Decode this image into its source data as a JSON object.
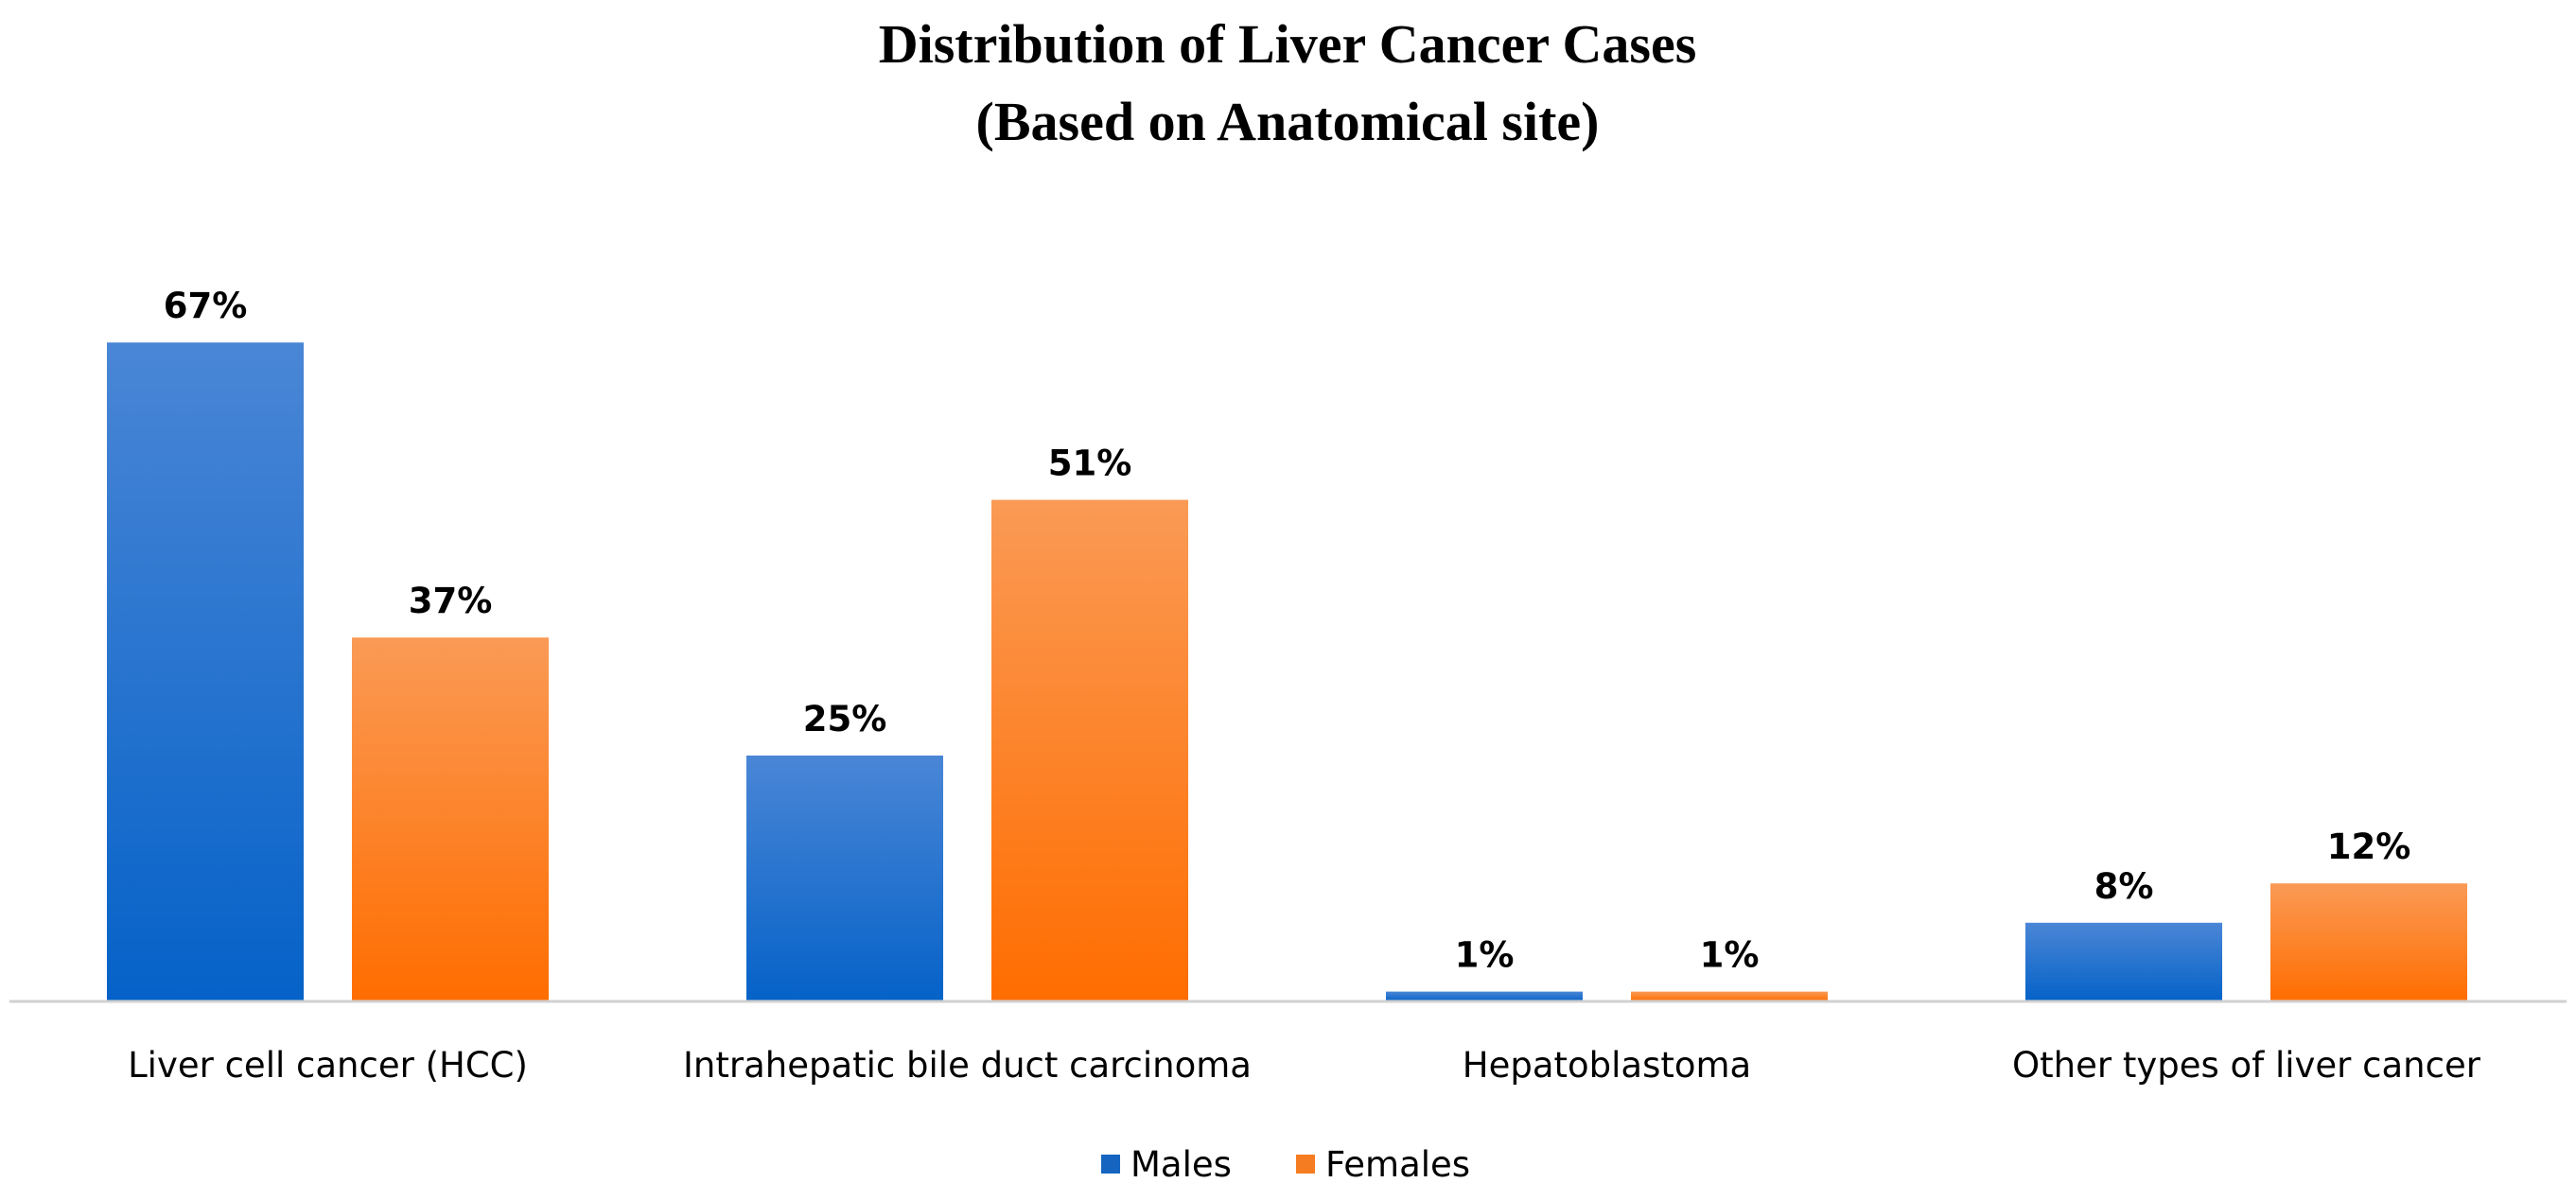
{
  "chart_data": {
    "type": "bar",
    "title": "Distribution of Liver Cancer Cases",
    "subtitle": "(Based on Anatomical site)",
    "categories": [
      "Liver cell cancer (HCC)",
      "Intrahepatic bile duct carcinoma",
      "Hepatoblastoma",
      "Other types of liver cancer"
    ],
    "series": [
      {
        "name": "Males",
        "values": [
          67,
          25,
          1,
          8
        ],
        "labels": [
          "67%",
          "25%",
          "1%",
          "8%"
        ],
        "color": "#1565C0",
        "color_light": "#4A86D6",
        "color_dark": "#0562C8"
      },
      {
        "name": "Females",
        "values": [
          37,
          51,
          1,
          12
        ],
        "labels": [
          "37%",
          "51%",
          "1%",
          "12%"
        ],
        "color": "#F57C20",
        "color_light": "#FA9A55",
        "color_dark": "#FF6D00"
      }
    ],
    "xlabel": "",
    "ylabel": "",
    "ylim": [
      0,
      73
    ],
    "grid": false,
    "legend_position": "bottom"
  }
}
